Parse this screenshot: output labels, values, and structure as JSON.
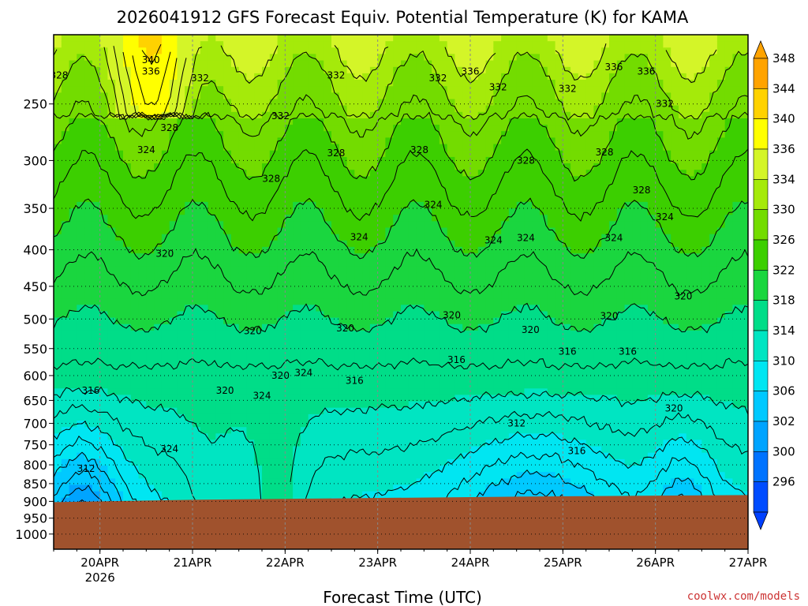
{
  "chart_data": {
    "type": "heatmap",
    "title": "2026041912 GFS Forecast Equiv. Potential Temperature (K) for KAMA",
    "xlabel": "Forecast Time (UTC)",
    "ylabel": "",
    "x_ticks": [
      "20APR",
      "21APR",
      "22APR",
      "23APR",
      "24APR",
      "25APR",
      "26APR",
      "27APR"
    ],
    "x_year_label": "2026",
    "x_range_days": [
      19.5,
      27.0
    ],
    "y_ticks": [
      250,
      300,
      350,
      400,
      450,
      500,
      550,
      600,
      650,
      700,
      750,
      800,
      850,
      900,
      950,
      1000
    ],
    "y_range_hpa": [
      200,
      1050
    ],
    "y_scale": "log",
    "grid": true,
    "colorbar_levels": [
      348,
      344,
      340,
      336,
      334,
      330,
      326,
      322,
      318,
      314,
      310,
      306,
      302,
      300,
      296
    ],
    "colorbar_colors": [
      "#ffa300",
      "#ffd200",
      "#ffff00",
      "#d4f528",
      "#a5ea0a",
      "#73dc00",
      "#3ccf00",
      "#1ad63f",
      "#00dd88",
      "#00e5c2",
      "#00e6f2",
      "#00c9ff",
      "#00a4ff",
      "#0073ff",
      "#004cff"
    ],
    "surface_pressure_hpa": 900,
    "surface_color": "#a0522d",
    "contour_interval_K": 2,
    "contour_labels": [
      {
        "day": 19.56,
        "p": 228,
        "value": "328"
      },
      {
        "day": 20.55,
        "p": 217,
        "value": "340"
      },
      {
        "day": 20.55,
        "p": 225,
        "value": "336"
      },
      {
        "day": 21.08,
        "p": 230,
        "value": "332"
      },
      {
        "day": 20.75,
        "p": 270,
        "value": "328"
      },
      {
        "day": 20.5,
        "p": 290,
        "value": "324"
      },
      {
        "day": 20.7,
        "p": 405,
        "value": "320"
      },
      {
        "day": 19.9,
        "p": 630,
        "value": "316"
      },
      {
        "day": 19.85,
        "p": 810,
        "value": "312"
      },
      {
        "day": 20.75,
        "p": 760,
        "value": "324"
      },
      {
        "day": 21.35,
        "p": 630,
        "value": "320"
      },
      {
        "day": 21.75,
        "p": 640,
        "value": "324"
      },
      {
        "day": 21.65,
        "p": 520,
        "value": "320"
      },
      {
        "day": 21.95,
        "p": 600,
        "value": "320"
      },
      {
        "day": 22.2,
        "p": 595,
        "value": "324"
      },
      {
        "day": 21.95,
        "p": 260,
        "value": "332"
      },
      {
        "day": 21.85,
        "p": 318,
        "value": "328"
      },
      {
        "day": 22.55,
        "p": 228,
        "value": "332"
      },
      {
        "day": 22.55,
        "p": 293,
        "value": "328"
      },
      {
        "day": 22.8,
        "p": 384,
        "value": "324"
      },
      {
        "day": 22.65,
        "p": 515,
        "value": "320"
      },
      {
        "day": 22.75,
        "p": 610,
        "value": "316"
      },
      {
        "day": 23.45,
        "p": 290,
        "value": "328"
      },
      {
        "day": 23.65,
        "p": 230,
        "value": "332"
      },
      {
        "day": 23.6,
        "p": 346,
        "value": "324"
      },
      {
        "day": 23.8,
        "p": 494,
        "value": "320"
      },
      {
        "day": 23.85,
        "p": 570,
        "value": "316"
      },
      {
        "day": 24.5,
        "p": 700,
        "value": "312"
      },
      {
        "day": 24.0,
        "p": 225,
        "value": "336"
      },
      {
        "day": 24.3,
        "p": 237,
        "value": "332"
      },
      {
        "day": 24.6,
        "p": 300,
        "value": "328"
      },
      {
        "day": 24.25,
        "p": 388,
        "value": "324"
      },
      {
        "day": 24.65,
        "p": 518,
        "value": "320"
      },
      {
        "day": 25.05,
        "p": 555,
        "value": "316"
      },
      {
        "day": 25.15,
        "p": 765,
        "value": "316"
      },
      {
        "day": 25.05,
        "p": 238,
        "value": "332"
      },
      {
        "day": 24.6,
        "p": 385,
        "value": "324"
      },
      {
        "day": 25.45,
        "p": 292,
        "value": "328"
      },
      {
        "day": 25.9,
        "p": 225,
        "value": "336"
      },
      {
        "day": 26.1,
        "p": 250,
        "value": "332"
      },
      {
        "day": 25.85,
        "p": 330,
        "value": "328"
      },
      {
        "day": 26.1,
        "p": 360,
        "value": "324"
      },
      {
        "day": 25.55,
        "p": 385,
        "value": "324"
      },
      {
        "day": 25.5,
        "p": 495,
        "value": "320"
      },
      {
        "day": 25.7,
        "p": 555,
        "value": "316"
      },
      {
        "day": 26.3,
        "p": 465,
        "value": "320"
      },
      {
        "day": 26.2,
        "p": 667,
        "value": "320"
      },
      {
        "day": 25.55,
        "p": 222,
        "value": "336"
      }
    ]
  },
  "credit": "coolwx.com/models"
}
